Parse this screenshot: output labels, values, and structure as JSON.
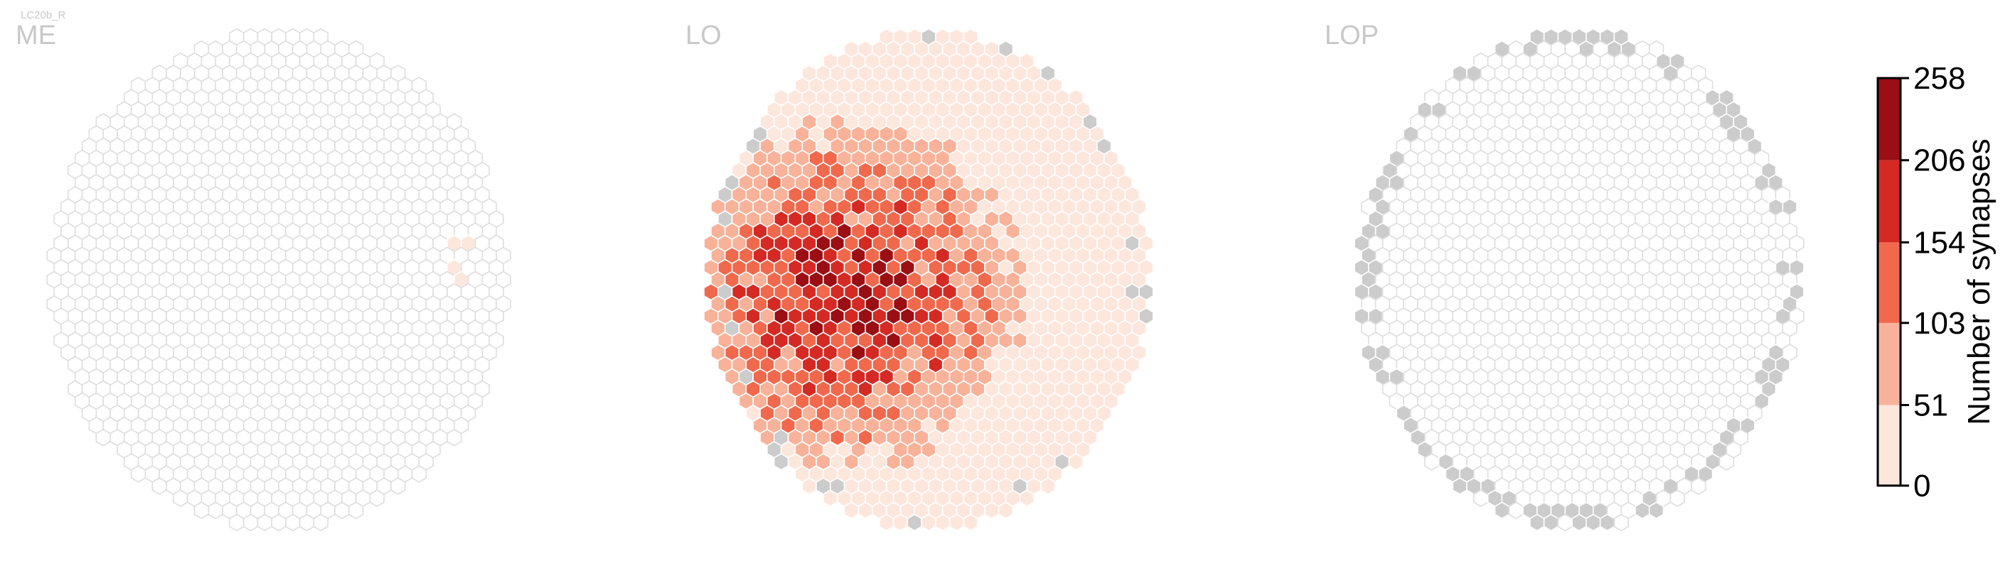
{
  "figure_label": "LC20b_R",
  "panels": [
    {
      "title": "ME"
    },
    {
      "title": "LO"
    },
    {
      "title": "LOP"
    }
  ],
  "colorbar": {
    "label": "Number of synapses",
    "ticks": [
      "258",
      "206",
      "154",
      "103",
      "51",
      "0"
    ],
    "bins": [
      {
        "min": 0,
        "max": 51,
        "color": "#fde7dd"
      },
      {
        "min": 51,
        "max": 103,
        "color": "#f9b29a"
      },
      {
        "min": 103,
        "max": 154,
        "color": "#f1694d"
      },
      {
        "min": 154,
        "max": 206,
        "color": "#d52a24"
      },
      {
        "min": 206,
        "max": 258,
        "color": "#9a0e14"
      }
    ]
  },
  "colors": {
    "empty_fill": "#ffffff",
    "empty_stroke": "#dddddd",
    "outside_fill": "#cccccc",
    "title": "#c8c8c8",
    "cell_stroke": "#ffffff"
  },
  "chart_data": {
    "type": "heatmap",
    "description_units": "synapse count per hexagonal column",
    "vmin": 0,
    "vmax": 258,
    "series": [
      {
        "name": "ME",
        "nonzero_cells": 4,
        "max_level_bin": 1,
        "outside_cells": 0
      },
      {
        "name": "LO",
        "nonzero_cells": 830,
        "max_level_bin": 5,
        "outside_cells": 20
      },
      {
        "name": "LOP",
        "nonzero_cells": 0,
        "max_level_bin": 0,
        "outside_cells": 60
      }
    ]
  }
}
